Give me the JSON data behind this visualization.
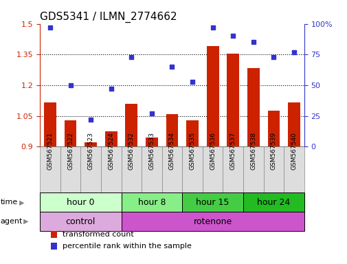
{
  "title": "GDS5341 / ILMN_2774662",
  "samples": [
    "GSM567521",
    "GSM567522",
    "GSM567523",
    "GSM567524",
    "GSM567532",
    "GSM567533",
    "GSM567534",
    "GSM567535",
    "GSM567536",
    "GSM567537",
    "GSM567538",
    "GSM567539",
    "GSM567540"
  ],
  "bar_values": [
    1.115,
    1.03,
    0.92,
    0.975,
    1.11,
    0.945,
    1.06,
    1.03,
    1.39,
    1.355,
    1.285,
    1.075,
    1.115
  ],
  "scatter_values": [
    97,
    50,
    22,
    47,
    73,
    27,
    65,
    53,
    97,
    90,
    85,
    73,
    77
  ],
  "ylim_left": [
    0.9,
    1.5
  ],
  "ylim_right": [
    0,
    100
  ],
  "yticks_left": [
    0.9,
    1.05,
    1.2,
    1.35,
    1.5
  ],
  "yticks_left_labels": [
    "0.9",
    "1.05",
    "1.2",
    "1.35",
    "1.5"
  ],
  "yticks_right": [
    0,
    25,
    50,
    75,
    100
  ],
  "yticks_right_labels": [
    "0",
    "25",
    "50",
    "75",
    "100%"
  ],
  "bar_color": "#cc2200",
  "scatter_color": "#3333cc",
  "time_groups": [
    {
      "label": "hour 0",
      "start": 0,
      "end": 4,
      "color": "#ccffcc"
    },
    {
      "label": "hour 8",
      "start": 4,
      "end": 7,
      "color": "#88ee88"
    },
    {
      "label": "hour 15",
      "start": 7,
      "end": 10,
      "color": "#44cc44"
    },
    {
      "label": "hour 24",
      "start": 10,
      "end": 13,
      "color": "#22bb22"
    }
  ],
  "agent_groups": [
    {
      "label": "control",
      "start": 0,
      "end": 4,
      "color": "#ddaadd"
    },
    {
      "label": "rotenone",
      "start": 4,
      "end": 13,
      "color": "#cc55cc"
    }
  ],
  "legend_bar_label": "transformed count",
  "legend_scatter_label": "percentile rank within the sample",
  "background_color": "#ffffff",
  "title_fontsize": 11,
  "tick_fontsize": 8,
  "label_fontsize": 9,
  "bar_bottom": 0.9,
  "sample_box_color": "#dddddd",
  "sample_box_edgecolor": "#888888"
}
